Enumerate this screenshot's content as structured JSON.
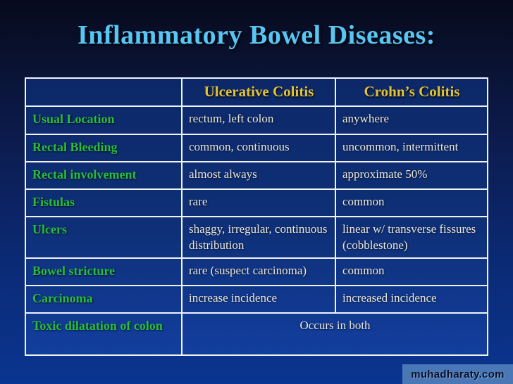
{
  "slide": {
    "title": "Inflammatory Bowel Diseases:"
  },
  "table": {
    "columns": [
      "",
      "Ulcerative Colitis",
      "Crohn’s Colitis"
    ],
    "rows": [
      {
        "label": "Usual Location",
        "ulcerative": "rectum, left colon",
        "crohns": "anywhere"
      },
      {
        "label": "Rectal Bleeding",
        "ulcerative": "common, continuous",
        "crohns": "uncommon, intermittent"
      },
      {
        "label": "Rectal involvement",
        "ulcerative": "almost always",
        "crohns": "approximate 50%"
      },
      {
        "label": "Fistulas",
        "ulcerative": "rare",
        "crohns": "common"
      },
      {
        "label": "Ulcers",
        "ulcerative": "shaggy, irregular, continuous distribution",
        "crohns": "linear w/ transverse fissures (cobblestone)"
      },
      {
        "label": "Bowel stricture",
        "ulcerative": "rare (suspect carcinoma)",
        "crohns": "common"
      },
      {
        "label": "Carcinoma",
        "ulcerative": "increase incidence",
        "crohns": "increased incidence"
      }
    ],
    "merged_row": {
      "label": "Toxic dilatation of colon",
      "value": "Occurs in both"
    }
  },
  "watermark": {
    "text": "muhadharaty.com"
  },
  "colors": {
    "title": "#58c6f2",
    "column_header": "#e2c235",
    "row_label": "#28be3c",
    "cell_value": "#eae6d8",
    "table_border": "#f0f4f8",
    "cell_background_top": "#0c2868",
    "cell_background_bottom": "#123e9e",
    "watermark_background": "#4a78b6",
    "watermark_text": "#0a1128"
  }
}
